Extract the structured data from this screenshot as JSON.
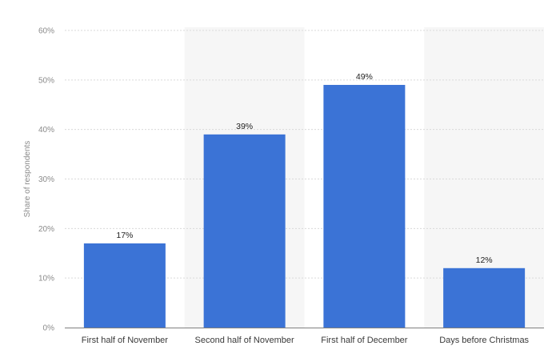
{
  "chart_data": {
    "type": "bar",
    "categories": [
      "First half of November",
      "Second half of November",
      "First half of December",
      "Days before Christmas"
    ],
    "values": [
      17,
      39,
      49,
      12
    ],
    "value_labels": [
      "17%",
      "39%",
      "49%",
      "12%"
    ],
    "title": "",
    "xlabel": "",
    "ylabel": "Share of respondents",
    "ylim": [
      0,
      60
    ],
    "yticks": [
      0,
      10,
      20,
      30,
      40,
      50,
      60
    ],
    "ytick_labels": [
      "0%",
      "10%",
      "20%",
      "30%",
      "40%",
      "50%",
      "60%"
    ],
    "grid": true,
    "legend": "none",
    "colors": {
      "bar": "#3b73d6",
      "band": "#f6f6f6",
      "grid": "#d9d9d9",
      "axis": "#7f7f7f"
    }
  }
}
